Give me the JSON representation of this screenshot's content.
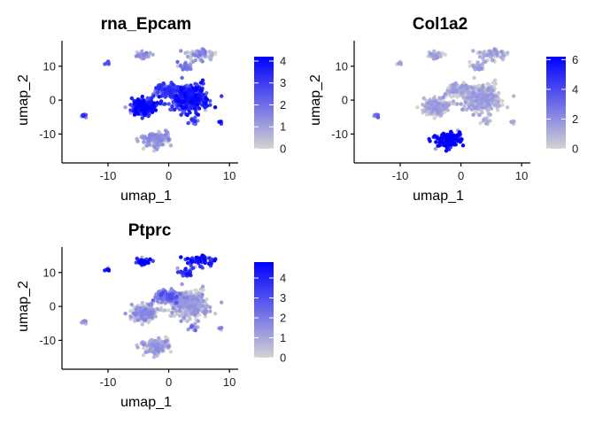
{
  "chart_data": [
    {
      "type": "scatter",
      "title": "rna_Epcam",
      "xlabel": "umap_1",
      "ylabel": "umap_2",
      "xlim": [
        -17,
        11
      ],
      "ylim": [
        -18,
        17
      ],
      "xticks": [
        -10,
        0,
        10
      ],
      "yticks": [
        -10,
        0,
        10
      ],
      "xtick_labels": [
        "-10",
        "0",
        "10"
      ],
      "ytick_labels": [
        "-10",
        "0",
        "10"
      ],
      "legend": {
        "position": "right",
        "range": [
          0,
          4.2
        ],
        "ticks": [
          0,
          1,
          2,
          3,
          4
        ],
        "tick_labels": [
          "0",
          "1",
          "2",
          "3",
          "4"
        ]
      },
      "color_low": "#d3d3d3",
      "color_high": "#0000ff",
      "clusters": [
        {
          "cx": 3.5,
          "cy": 0.5,
          "sx": 3.0,
          "sy": 3.5,
          "n": 420,
          "level": 0.75
        },
        {
          "cx": -4.0,
          "cy": -2.0,
          "sx": 2.0,
          "sy": 2.0,
          "n": 220,
          "level": 0.85
        },
        {
          "cx": 0.0,
          "cy": 3.0,
          "sx": 2.0,
          "sy": 1.5,
          "n": 120,
          "level": 0.6
        },
        {
          "cx": -2.0,
          "cy": -11.5,
          "sx": 2.0,
          "sy": 2.0,
          "n": 140,
          "level": 0.15
        },
        {
          "cx": -4.0,
          "cy": 13.0,
          "sx": 1.5,
          "sy": 1.0,
          "n": 40,
          "level": 0.2
        },
        {
          "cx": 5.0,
          "cy": 13.5,
          "sx": 2.0,
          "sy": 1.5,
          "n": 60,
          "level": 0.2
        },
        {
          "cx": 3.0,
          "cy": 10.0,
          "sx": 1.5,
          "sy": 1.0,
          "n": 30,
          "level": 0.3
        },
        {
          "cx": -10.0,
          "cy": 11.0,
          "sx": 0.5,
          "sy": 0.6,
          "n": 10,
          "level": 0.4
        },
        {
          "cx": -14.0,
          "cy": -4.5,
          "sx": 0.5,
          "sy": 0.5,
          "n": 8,
          "level": 0.6
        },
        {
          "cx": 8.5,
          "cy": -6.5,
          "sx": 0.4,
          "sy": 0.5,
          "n": 6,
          "level": 0.8
        },
        {
          "cx": 4.0,
          "cy": -6.0,
          "sx": 0.8,
          "sy": 1.0,
          "n": 15,
          "level": 0.6
        }
      ]
    },
    {
      "type": "scatter",
      "title": "Col1a2",
      "xlabel": "umap_1",
      "ylabel": "umap_2",
      "xlim": [
        -17,
        11
      ],
      "ylim": [
        -18,
        17
      ],
      "xticks": [
        -10,
        0,
        10
      ],
      "yticks": [
        -10,
        0,
        10
      ],
      "xtick_labels": [
        "-10",
        "0",
        "10"
      ],
      "ytick_labels": [
        "-10",
        "0",
        "10"
      ],
      "legend": {
        "position": "right",
        "range": [
          0,
          6.2
        ],
        "ticks": [
          0,
          2,
          4,
          6
        ],
        "tick_labels": [
          "0",
          "2",
          "4",
          "6"
        ]
      },
      "color_low": "#d3d3d3",
      "color_high": "#0000ff",
      "clusters": [
        {
          "cx": 3.5,
          "cy": 0.5,
          "sx": 3.0,
          "sy": 3.5,
          "n": 420,
          "level": 0.05
        },
        {
          "cx": -4.0,
          "cy": -2.0,
          "sx": 2.0,
          "sy": 2.0,
          "n": 220,
          "level": 0.05
        },
        {
          "cx": 0.0,
          "cy": 3.0,
          "sx": 2.0,
          "sy": 1.5,
          "n": 120,
          "level": 0.05
        },
        {
          "cx": -2.0,
          "cy": -11.5,
          "sx": 2.0,
          "sy": 2.0,
          "n": 140,
          "level": 0.95
        },
        {
          "cx": -4.0,
          "cy": 13.0,
          "sx": 1.5,
          "sy": 1.0,
          "n": 40,
          "level": 0.05
        },
        {
          "cx": 5.0,
          "cy": 13.5,
          "sx": 2.0,
          "sy": 1.5,
          "n": 60,
          "level": 0.05
        },
        {
          "cx": 3.0,
          "cy": 10.0,
          "sx": 1.5,
          "sy": 1.0,
          "n": 30,
          "level": 0.05
        },
        {
          "cx": -10.0,
          "cy": 11.0,
          "sx": 0.5,
          "sy": 0.6,
          "n": 10,
          "level": 0.05
        },
        {
          "cx": -14.0,
          "cy": -4.5,
          "sx": 0.5,
          "sy": 0.5,
          "n": 8,
          "level": 0.4
        },
        {
          "cx": 8.5,
          "cy": -6.5,
          "sx": 0.4,
          "sy": 0.5,
          "n": 6,
          "level": 0.05
        },
        {
          "cx": 4.0,
          "cy": -6.0,
          "sx": 0.8,
          "sy": 1.0,
          "n": 15,
          "level": 0.05
        }
      ]
    },
    {
      "type": "scatter",
      "title": "Ptprc",
      "xlabel": "umap_1",
      "ylabel": "umap_2",
      "xlim": [
        -17,
        11
      ],
      "ylim": [
        -18,
        17
      ],
      "xticks": [
        -10,
        0,
        10
      ],
      "yticks": [
        -10,
        0,
        10
      ],
      "xtick_labels": [
        "-10",
        "0",
        "10"
      ],
      "ytick_labels": [
        "-10",
        "0",
        "10"
      ],
      "legend": {
        "position": "right",
        "range": [
          0,
          4.8
        ],
        "ticks": [
          0,
          1,
          2,
          3,
          4
        ],
        "tick_labels": [
          "0",
          "1",
          "2",
          "3",
          "4"
        ]
      },
      "color_low": "#d3d3d3",
      "color_high": "#0000ff",
      "clusters": [
        {
          "cx": 3.5,
          "cy": 0.5,
          "sx": 3.0,
          "sy": 3.5,
          "n": 420,
          "level": 0.08
        },
        {
          "cx": -4.0,
          "cy": -2.0,
          "sx": 2.0,
          "sy": 2.0,
          "n": 220,
          "level": 0.15
        },
        {
          "cx": 0.0,
          "cy": 3.0,
          "sx": 2.0,
          "sy": 1.5,
          "n": 120,
          "level": 0.4
        },
        {
          "cx": -2.0,
          "cy": -11.5,
          "sx": 2.0,
          "sy": 2.0,
          "n": 140,
          "level": 0.1
        },
        {
          "cx": -4.0,
          "cy": 13.0,
          "sx": 1.5,
          "sy": 1.0,
          "n": 40,
          "level": 0.85
        },
        {
          "cx": 5.0,
          "cy": 13.5,
          "sx": 2.0,
          "sy": 1.5,
          "n": 60,
          "level": 0.85
        },
        {
          "cx": 3.0,
          "cy": 10.0,
          "sx": 1.5,
          "sy": 1.0,
          "n": 30,
          "level": 0.7
        },
        {
          "cx": -10.0,
          "cy": 11.0,
          "sx": 0.5,
          "sy": 0.6,
          "n": 10,
          "level": 0.75
        },
        {
          "cx": -14.0,
          "cy": -4.5,
          "sx": 0.5,
          "sy": 0.5,
          "n": 8,
          "level": 0.2
        },
        {
          "cx": 8.5,
          "cy": -6.5,
          "sx": 0.4,
          "sy": 0.5,
          "n": 6,
          "level": 0.2
        },
        {
          "cx": 4.0,
          "cy": -6.0,
          "sx": 0.8,
          "sy": 1.0,
          "n": 15,
          "level": 0.3
        }
      ]
    }
  ]
}
